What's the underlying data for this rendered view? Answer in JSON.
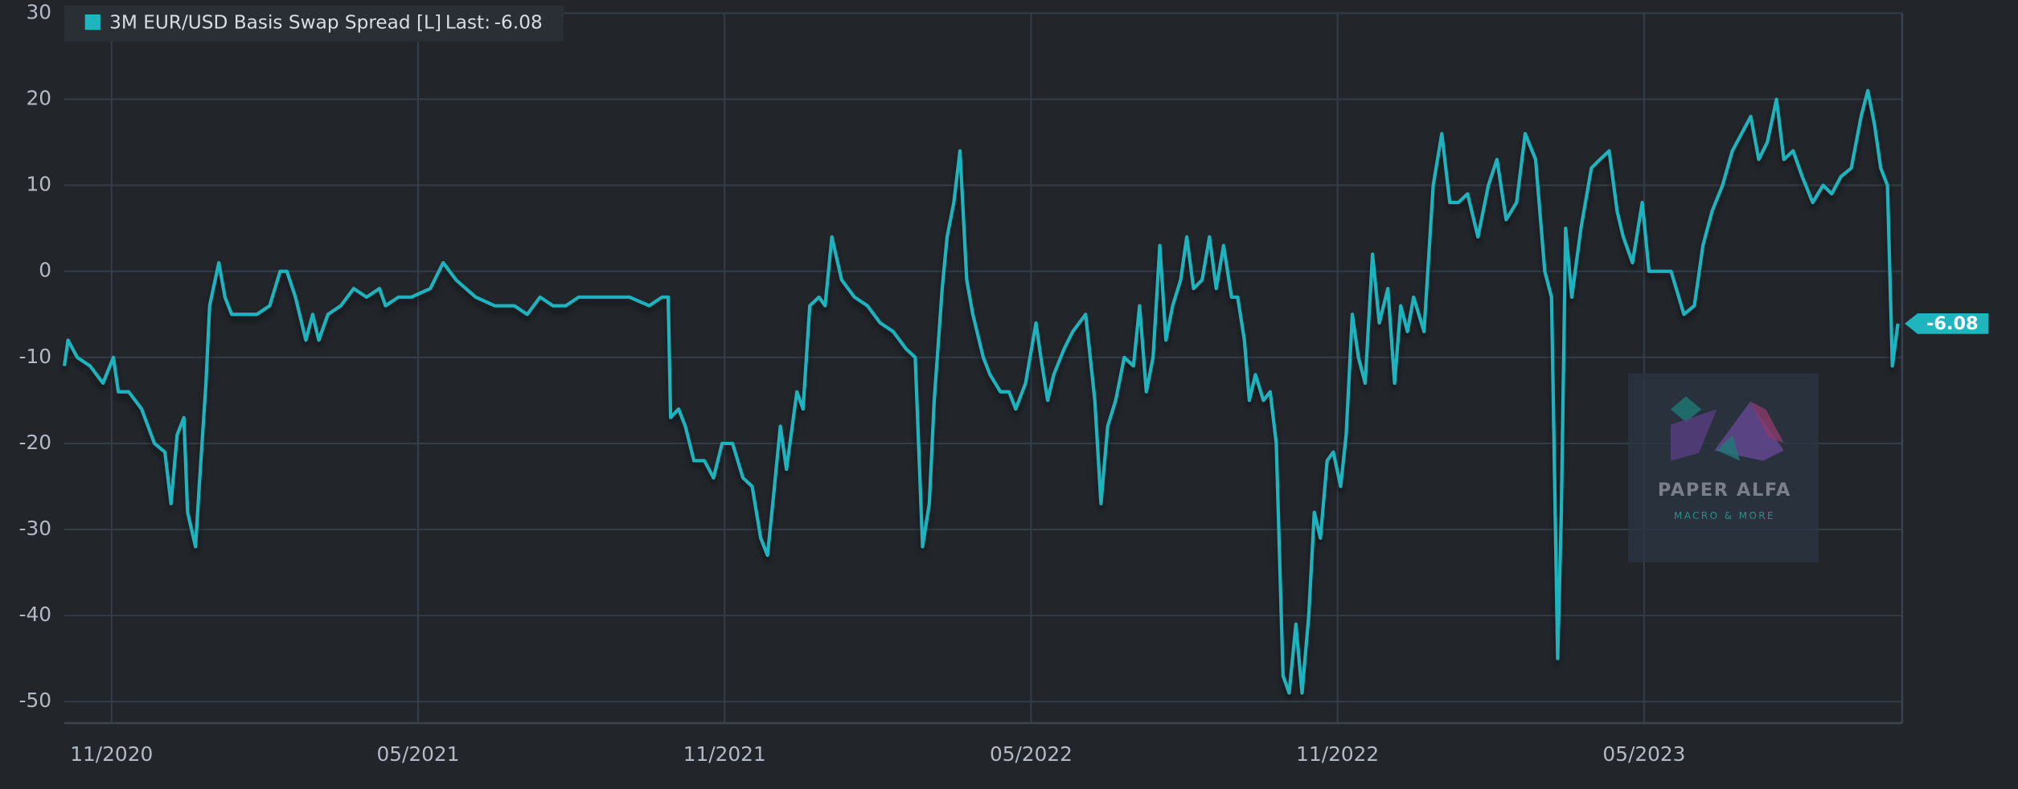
{
  "chart_data": {
    "type": "line",
    "watermark_title": "PAPER ALFA",
    "watermark_subtitle": "MACRO & MORE",
    "legend_last_label": "Last:",
    "last_value": -6.08,
    "grid": true,
    "xlim": [
      2020.756,
      2023.754
    ],
    "ylim": [
      -52.5,
      30
    ],
    "yticks": [
      -50,
      -40,
      -30,
      -20,
      -10,
      0,
      10,
      20,
      30
    ],
    "xticks": [
      {
        "value": 2020.833,
        "label": "11/2020"
      },
      {
        "value": 2021.333,
        "label": "05/2021"
      },
      {
        "value": 2021.833,
        "label": "11/2021"
      },
      {
        "value": 2022.333,
        "label": "05/2022"
      },
      {
        "value": 2022.833,
        "label": "11/2022"
      },
      {
        "value": 2023.333,
        "label": "05/2023"
      }
    ],
    "x": [
      2020.756,
      2020.762,
      2020.777,
      2020.798,
      2020.819,
      2020.836,
      2020.844,
      2020.861,
      2020.882,
      2020.903,
      2020.92,
      2020.93,
      2020.94,
      2020.951,
      2020.957,
      2020.97,
      2020.976,
      2020.987,
      2020.993,
      2021.008,
      2021.018,
      2021.029,
      2021.05,
      2021.07,
      2021.091,
      2021.108,
      2021.119,
      2021.133,
      2021.15,
      2021.161,
      2021.171,
      2021.186,
      2021.207,
      2021.228,
      2021.249,
      2021.27,
      2021.28,
      2021.301,
      2021.322,
      2021.353,
      2021.374,
      2021.395,
      2021.427,
      2021.458,
      2021.49,
      2021.511,
      2021.532,
      2021.553,
      2021.574,
      2021.595,
      2021.637,
      2021.678,
      2021.71,
      2021.731,
      2021.741,
      2021.745,
      2021.758,
      2021.769,
      2021.783,
      2021.8,
      2021.815,
      2021.829,
      2021.846,
      2021.863,
      2021.878,
      2021.892,
      2021.903,
      2021.913,
      2021.924,
      2021.934,
      2021.951,
      2021.961,
      2021.972,
      2021.987,
      2021.997,
      2022.008,
      2022.024,
      2022.045,
      2022.066,
      2022.087,
      2022.108,
      2022.129,
      2022.144,
      2022.156,
      2022.167,
      2022.175,
      2022.188,
      2022.196,
      2022.207,
      2022.217,
      2022.228,
      2022.238,
      2022.255,
      2022.266,
      2022.283,
      2022.297,
      2022.308,
      2022.324,
      2022.341,
      2022.349,
      2022.36,
      2022.37,
      2022.387,
      2022.401,
      2022.422,
      2022.437,
      2022.447,
      2022.458,
      2022.471,
      2022.485,
      2022.5,
      2022.51,
      2022.521,
      2022.532,
      2022.543,
      2022.553,
      2022.564,
      2022.577,
      2022.587,
      2022.598,
      2022.612,
      2022.624,
      2022.635,
      2022.647,
      2022.66,
      2022.67,
      2022.681,
      2022.689,
      2022.699,
      2022.712,
      2022.723,
      2022.733,
      2022.744,
      2022.754,
      2022.765,
      2022.775,
      2022.786,
      2022.795,
      2022.805,
      2022.816,
      2022.826,
      2022.838,
      2022.847,
      2022.857,
      2022.867,
      2022.878,
      2022.89,
      2022.901,
      2022.915,
      2022.926,
      2022.936,
      2022.947,
      2022.957,
      2022.974,
      2022.989,
      2023.003,
      2023.016,
      2023.03,
      2023.045,
      2023.062,
      2023.079,
      2023.093,
      2023.108,
      2023.125,
      2023.139,
      2023.156,
      2023.171,
      2023.182,
      2023.192,
      2023.198,
      2023.205,
      2023.215,
      2023.23,
      2023.247,
      2023.261,
      2023.276,
      2023.289,
      2023.299,
      2023.314,
      2023.33,
      2023.341,
      2023.356,
      2023.377,
      2023.398,
      2023.415,
      2023.429,
      2023.444,
      2023.461,
      2023.477,
      2023.492,
      2023.507,
      2023.52,
      2023.534,
      2023.549,
      2023.561,
      2023.576,
      2023.591,
      2023.608,
      2023.625,
      2023.639,
      2023.654,
      2023.671,
      2023.687,
      2023.698,
      2023.709,
      2023.719,
      2023.73,
      2023.738,
      2023.747
    ],
    "series": [
      {
        "name": "3M EUR/USD Basis Swap Spread [L]",
        "color": "#1fb5bf",
        "values": [
          -11,
          -8,
          -10,
          -11,
          -13,
          -10,
          -14,
          -14,
          -16,
          -20,
          -21,
          -27,
          -19,
          -17,
          -28,
          -32,
          -25,
          -13,
          -4,
          1,
          -3,
          -5,
          -5,
          -5,
          -4,
          0,
          0,
          -3,
          -8,
          -5,
          -8,
          -5,
          -4,
          -2,
          -3,
          -2,
          -4,
          -3,
          -3,
          -2,
          1,
          -1,
          -3,
          -4,
          -4,
          -5,
          -3,
          -4,
          -4,
          -3,
          -3,
          -3,
          -4,
          -3,
          -3,
          -17,
          -16,
          -18,
          -22,
          -22,
          -24,
          -20,
          -20,
          -24,
          -25,
          -31,
          -33,
          -26,
          -18,
          -23,
          -14,
          -16,
          -4,
          -3,
          -4,
          4,
          -1,
          -3,
          -4,
          -6,
          -7,
          -9,
          -10,
          -32,
          -27,
          -15,
          -2,
          4,
          8,
          14,
          -1,
          -5,
          -10,
          -12,
          -14,
          -14,
          -16,
          -13,
          -6,
          -10,
          -15,
          -12,
          -9,
          -7,
          -5,
          -15,
          -27,
          -18,
          -15,
          -10,
          -11,
          -4,
          -14,
          -10,
          3,
          -8,
          -4,
          -1,
          4,
          -2,
          -1,
          4,
          -2,
          3,
          -3,
          -3,
          -8,
          -15,
          -12,
          -15,
          -14,
          -20,
          -47,
          -49,
          -41,
          -49,
          -40,
          -28,
          -31,
          -22,
          -21,
          -25,
          -19,
          -5,
          -10,
          -13,
          2,
          -6,
          -2,
          -13,
          -4,
          -7,
          -3,
          -7,
          10,
          16,
          8,
          8,
          9,
          4,
          10,
          13,
          6,
          8,
          16,
          13,
          0,
          -3,
          -45,
          -28,
          5,
          -3,
          5,
          12,
          13,
          14,
          7,
          4,
          1,
          8,
          0,
          0,
          0,
          -5,
          -4,
          3,
          7,
          10,
          14,
          16,
          18,
          13,
          15,
          20,
          13,
          14,
          11,
          8,
          10,
          9,
          11,
          12,
          18,
          21,
          17,
          12,
          10,
          -11,
          -6.08
        ]
      }
    ]
  }
}
